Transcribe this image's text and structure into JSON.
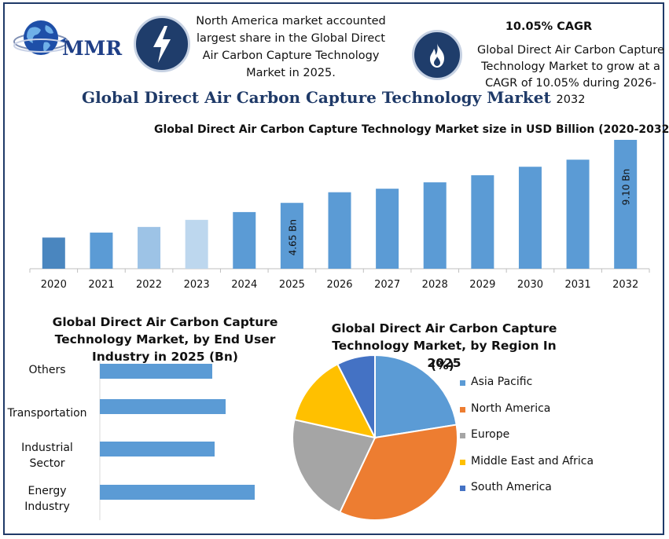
{
  "header": {
    "logo_text": "MMR",
    "info_left": "North America market accounted largest share in the Global Direct Air Carbon Capture Technology Market in 2025.",
    "cagr_title": "10.05% CAGR",
    "info_right": "Global Direct Air Carbon Capture Technology Market to grow at a CAGR of 10.05% during 2026-2032",
    "main_title": "Global Direct Air Carbon Capture Technology Market",
    "icons": [
      "lightning-bolt-icon",
      "flame-icon",
      "globe-logo-icon"
    ]
  },
  "colors": {
    "frame": "#1f3a68",
    "icon_bg": "#1f3d6b",
    "bar_main": "#5b9bd5",
    "pie": [
      "#5b9bd5",
      "#ed7d31",
      "#a5a5a5",
      "#ffc000",
      "#4472c4"
    ]
  },
  "chart_data": [
    {
      "type": "bar",
      "title": "Global Direct Air Carbon Capture Technology Market size in USD Billion (2020-2032)",
      "categories": [
        "2020",
        "2021",
        "2022",
        "2023",
        "2024",
        "2025",
        "2026",
        "2027",
        "2028",
        "2029",
        "2030",
        "2031",
        "2032"
      ],
      "values": [
        2.2,
        2.55,
        2.95,
        3.45,
        4.0,
        4.65,
        5.4,
        5.65,
        6.1,
        6.6,
        7.2,
        7.7,
        9.1
      ],
      "bar_colors": [
        "#4a86bf",
        "#5b9bd5",
        "#9dc3e6",
        "#bdd7ee",
        "#5b9bd5",
        "#5b9bd5",
        "#5b9bd5",
        "#5b9bd5",
        "#5b9bd5",
        "#5b9bd5",
        "#5b9bd5",
        "#5b9bd5",
        "#5b9bd5"
      ],
      "data_labels": [
        {
          "category": "2025",
          "text": "4.65 Bn"
        },
        {
          "category": "2032",
          "text": "9.10 Bn"
        }
      ],
      "ylim": [
        0,
        9.1
      ],
      "grid": false
    },
    {
      "type": "bar",
      "orientation": "horizontal",
      "title": "Global Direct Air Carbon Capture Technology Market, by End User Industry in 2025 (Bn)",
      "categories": [
        "Others",
        "Transportation",
        "Industrial Sector",
        "Energy Industry"
      ],
      "category_lines": [
        [
          "Others"
        ],
        [
          "Transportation"
        ],
        [
          "Industrial",
          "Sector"
        ],
        [
          "Energy",
          "Industry"
        ]
      ],
      "values": [
        1.43,
        1.6,
        1.46,
        1.97
      ],
      "xlim": [
        0,
        2.0
      ]
    },
    {
      "type": "pie",
      "title": "Global Direct Air Carbon Capture Technology Market, by Region In 2025",
      "subtitle": "(%)",
      "legend_position": "right",
      "series": [
        {
          "name": "Asia Pacific",
          "value": 22.5
        },
        {
          "name": "North America",
          "value": 34.5
        },
        {
          "name": "Europe",
          "value": 21.5
        },
        {
          "name": "Middle East and Africa",
          "value": 14.0
        },
        {
          "name": "South America",
          "value": 7.5
        }
      ]
    }
  ]
}
